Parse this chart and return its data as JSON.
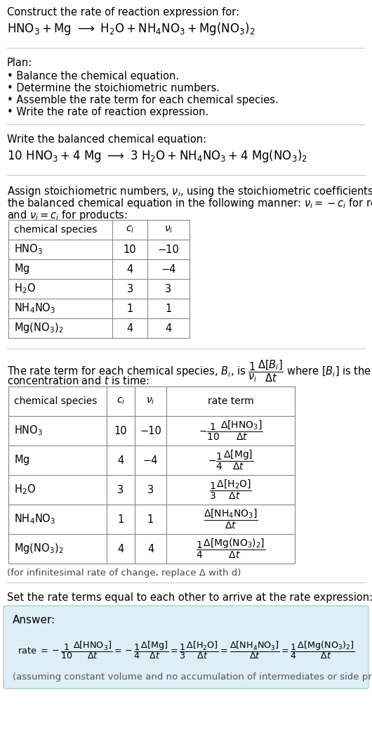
{
  "bg_color": "#ffffff",
  "text_color": "#000000",
  "answer_bg": "#ddeef6",
  "answer_border": "#aaccdd",
  "table_border": "#888888",
  "sep_line": "#cccccc",
  "plan_items": [
    "• Balance the chemical equation.",
    "• Determine the stoichiometric numbers.",
    "• Assemble the rate term for each chemical species.",
    "• Write the rate of reaction expression."
  ],
  "table1_rows": [
    [
      "HNO_3",
      "10",
      "−10"
    ],
    [
      "Mg",
      "4",
      "−4"
    ],
    [
      "H_2O",
      "3",
      "3"
    ],
    [
      "NH_4NO_3",
      "1",
      "1"
    ],
    [
      "Mg(NO_3)_2",
      "4",
      "4"
    ]
  ],
  "infinitesimal_note": "(for infinitesimal rate of change, replace Δ with d)",
  "set_equal_header": "Set the rate terms equal to each other to arrive at the rate expression:",
  "answer_label": "Answer:",
  "answer_note": "(assuming constant volume and no accumulation of intermediates or side products)"
}
